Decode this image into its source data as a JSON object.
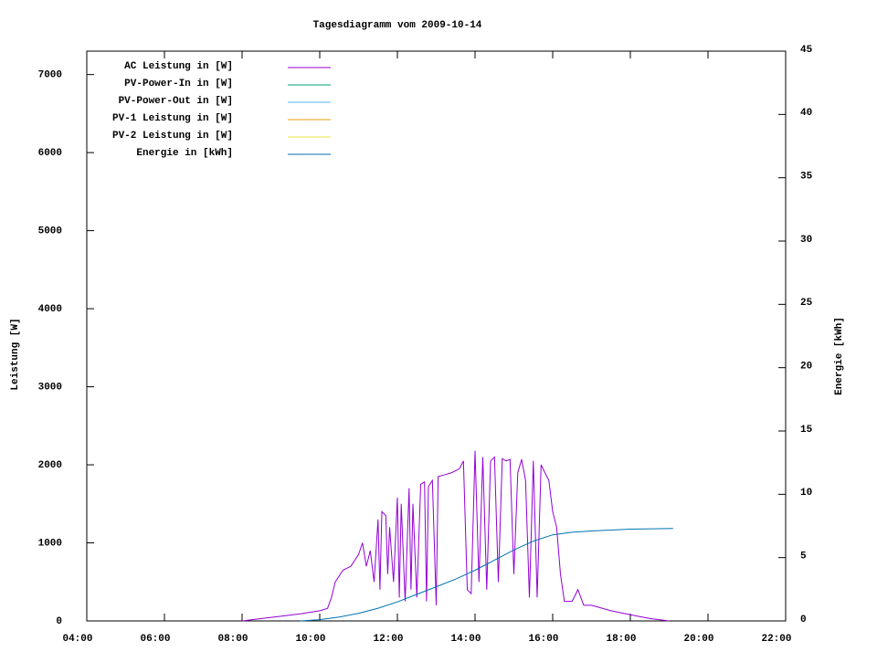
{
  "chart_data": {
    "type": "line",
    "title": "Tagesdiagramm vom 2009-10-14",
    "ylabel": "Leistung [W]",
    "y2label": "Energie [kWh]",
    "xlim": [
      4,
      22
    ],
    "xticks": [
      {
        "value": 4,
        "label": "04:00"
      },
      {
        "value": 6,
        "label": "06:00"
      },
      {
        "value": 8,
        "label": "08:00"
      },
      {
        "value": 10,
        "label": "10:00"
      },
      {
        "value": 12,
        "label": "12:00"
      },
      {
        "value": 14,
        "label": "14:00"
      },
      {
        "value": 16,
        "label": "16:00"
      },
      {
        "value": 18,
        "label": "18:00"
      },
      {
        "value": 20,
        "label": "20:00"
      },
      {
        "value": 22,
        "label": "22:00"
      }
    ],
    "ylim": [
      0,
      7300
    ],
    "yticks": [
      0,
      1000,
      2000,
      3000,
      4000,
      5000,
      6000,
      7000
    ],
    "y2lim": [
      0,
      45
    ],
    "y2ticks": [
      0,
      5,
      10,
      15,
      20,
      25,
      30,
      35,
      40,
      45
    ],
    "legend": "top-left",
    "series": [
      {
        "name": "AC Leistung in [W]",
        "color": "#9400d3",
        "x": [
          8.0,
          8.5,
          9.0,
          9.5,
          10.0,
          10.2,
          10.3,
          10.4,
          10.6,
          10.8,
          11.0,
          11.1,
          11.2,
          11.3,
          11.4,
          11.5,
          11.55,
          11.6,
          11.7,
          11.75,
          11.8,
          11.9,
          12.0,
          12.05,
          12.1,
          12.2,
          12.3,
          12.35,
          12.4,
          12.5,
          12.6,
          12.7,
          12.75,
          12.8,
          12.9,
          13.0,
          13.05,
          13.2,
          13.4,
          13.6,
          13.7,
          13.8,
          13.9,
          14.0,
          14.1,
          14.2,
          14.3,
          14.4,
          14.5,
          14.6,
          14.7,
          14.8,
          14.9,
          15.0,
          15.1,
          15.2,
          15.3,
          15.4,
          15.5,
          15.6,
          15.7,
          15.8,
          15.9,
          16.0,
          16.1,
          16.2,
          16.3,
          16.5,
          16.65,
          16.8,
          17.0,
          17.5,
          18.0,
          18.5,
          19.0
        ],
        "values": [
          0,
          30,
          60,
          90,
          130,
          160,
          300,
          500,
          650,
          700,
          850,
          1000,
          700,
          900,
          500,
          1300,
          400,
          1400,
          1350,
          600,
          1200,
          500,
          1580,
          300,
          1500,
          250,
          1700,
          400,
          1500,
          300,
          1750,
          1780,
          250,
          1720,
          1800,
          200,
          1850,
          1870,
          1900,
          1950,
          2050,
          400,
          350,
          2180,
          500,
          2100,
          400,
          2050,
          2100,
          500,
          2080,
          2050,
          2070,
          600,
          1900,
          2070,
          1800,
          300,
          2050,
          300,
          2000,
          1900,
          1800,
          1400,
          1200,
          600,
          250,
          250,
          400,
          200,
          200,
          130,
          80,
          30,
          0
        ]
      },
      {
        "name": "PV-Power-In in [W]",
        "color": "#009e73",
        "values": []
      },
      {
        "name": "PV-Power-Out in [W]",
        "color": "#56b4e9",
        "values": []
      },
      {
        "name": "PV-1 Leistung in [W]",
        "color": "#e69f00",
        "values": []
      },
      {
        "name": "PV-2 Leistung in [W]",
        "color": "#f0e442",
        "values": []
      },
      {
        "name": "Energie in [kWh]",
        "color": "#0072b2",
        "axis": "y2",
        "x": [
          9.5,
          10.0,
          10.5,
          11.0,
          11.5,
          12.0,
          12.5,
          13.0,
          13.5,
          14.0,
          14.5,
          15.0,
          15.5,
          16.0,
          16.5,
          17.0,
          18.0,
          19.1
        ],
        "values": [
          0,
          0.1,
          0.3,
          0.6,
          1.0,
          1.5,
          2.1,
          2.7,
          3.3,
          4.0,
          4.8,
          5.6,
          6.3,
          6.8,
          7.0,
          7.1,
          7.25,
          7.3
        ]
      }
    ]
  }
}
